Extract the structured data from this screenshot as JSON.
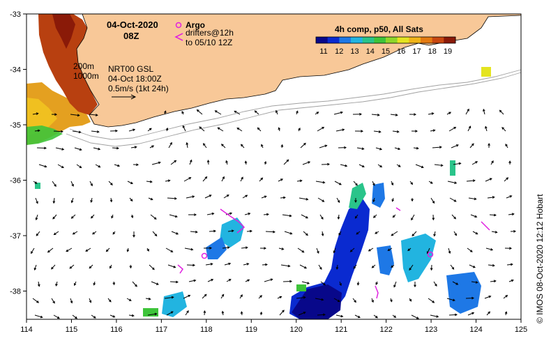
{
  "header": {
    "date": "04-Oct-2020",
    "time": "08Z"
  },
  "legend": {
    "argo_label": "Argo",
    "drifters_label": "drifters@12h",
    "drifters_sub": "to 05/10 12Z",
    "argo_color": "#e020e0",
    "drifter_color": "#e020e0"
  },
  "isobaths": {
    "line1": "200m",
    "line2": "1000m"
  },
  "currents": {
    "source": "NRT00 GSL",
    "time": "04-Oct 18:00Z",
    "scale": "0.5m/s (1kt 24h)"
  },
  "colorbar": {
    "title": "4h comp, p50, All Sats",
    "labels": [
      "11",
      "12",
      "13",
      "14",
      "15",
      "16",
      "17",
      "18",
      "19"
    ],
    "colors": [
      "#08088a",
      "#0a2ad0",
      "#1e78e6",
      "#22b4e0",
      "#2ac48a",
      "#3ec43a",
      "#8ed62a",
      "#e4e420",
      "#f0b418",
      "#e47a10",
      "#c84810",
      "#8a1a08"
    ]
  },
  "credit": "© IMOS 08-Oct-2020 12:12 Hobart",
  "axes": {
    "x_ticks": [
      "114",
      "115",
      "116",
      "117",
      "118",
      "119",
      "120",
      "121",
      "122",
      "123",
      "124",
      "125"
    ],
    "y_ticks": [
      "-33",
      "-34",
      "-35",
      "-36",
      "-37",
      "-38"
    ]
  },
  "colors": {
    "land": "#f8c898",
    "frame": "#000000",
    "isobath": "#a0a0a0"
  }
}
